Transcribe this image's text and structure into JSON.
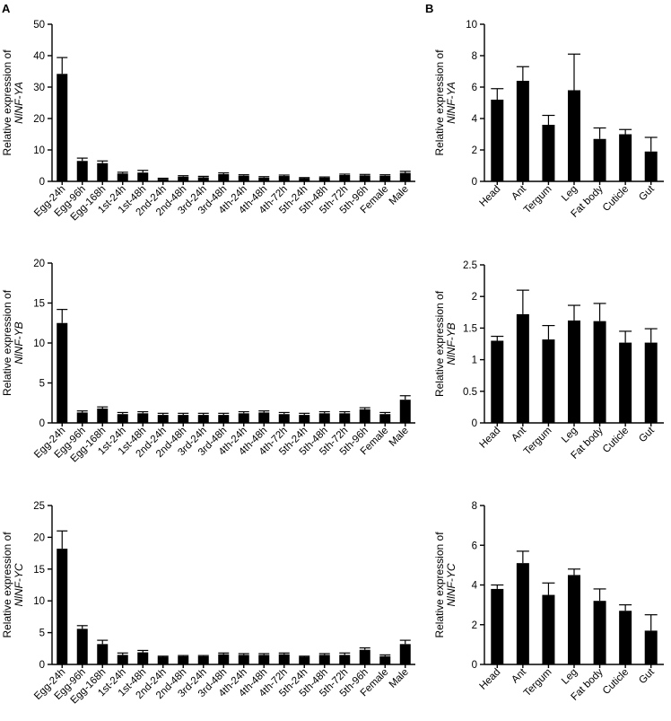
{
  "panels": [
    {
      "letter": "A"
    },
    {
      "letter": "B"
    }
  ],
  "chart_data": [
    {
      "type": "bar",
      "panel": "A",
      "ylabel": "Relative expression of",
      "ylabel_gene": "NlNF-YA",
      "ylim": [
        0,
        50
      ],
      "yticks": [
        0,
        10,
        20,
        30,
        40,
        50
      ],
      "categories": [
        "Egg-24h",
        "Egg-96h",
        "Egg-168h",
        "1st-24h",
        "1st-48h",
        "2nd-24h",
        "2nd-48h",
        "3rd-24h",
        "3rd-48h",
        "4th-24h",
        "4th-48h",
        "4th-72h",
        "5th-24h",
        "5th-48h",
        "5th-72h",
        "5th-96h",
        "Female",
        "Male"
      ],
      "values": [
        34.2,
        6.5,
        5.8,
        2.5,
        2.8,
        0.8,
        1.5,
        1.3,
        2.3,
        1.8,
        1.2,
        1.7,
        1.0,
        1.2,
        2.0,
        1.9,
        1.8,
        2.7
      ],
      "errors": [
        5.2,
        0.9,
        0.7,
        0.4,
        0.7,
        0.2,
        0.3,
        0.3,
        0.4,
        0.3,
        0.3,
        0.3,
        0.2,
        0.2,
        0.3,
        0.3,
        0.3,
        0.5
      ],
      "grid": false
    },
    {
      "type": "bar",
      "panel": "B",
      "ylabel": "Relative expression of",
      "ylabel_gene": "NlNF-YA",
      "ylim": [
        0,
        10
      ],
      "yticks": [
        0,
        2,
        4,
        6,
        8,
        10
      ],
      "categories": [
        "Head",
        "Ant",
        "Tergum",
        "Leg",
        "Fat body",
        "Cuticle",
        "Gut"
      ],
      "values": [
        5.2,
        6.4,
        3.6,
        5.8,
        2.7,
        3.0,
        1.9
      ],
      "errors": [
        0.7,
        0.9,
        0.6,
        2.3,
        0.7,
        0.3,
        0.9
      ],
      "grid": false
    },
    {
      "type": "bar",
      "panel": "A",
      "ylabel": "Relative expression of",
      "ylabel_gene": "NlNF-YB",
      "ylim": [
        0,
        20
      ],
      "yticks": [
        0,
        5,
        10,
        15,
        20
      ],
      "categories": [
        "Egg-24h",
        "Egg-96h",
        "Egg-168h",
        "1st-24h",
        "1st-48h",
        "2nd-24h",
        "2nd-48h",
        "3rd-24h",
        "3rd-48h",
        "4th-24h",
        "4th-48h",
        "4th-72h",
        "5th-24h",
        "5th-48h",
        "5th-72h",
        "5th-96h",
        "Female",
        "Male"
      ],
      "values": [
        12.5,
        1.3,
        1.8,
        1.1,
        1.2,
        1.0,
        1.0,
        1.0,
        1.0,
        1.2,
        1.3,
        1.1,
        1.0,
        1.2,
        1.2,
        1.7,
        1.1,
        2.9
      ],
      "errors": [
        1.7,
        0.2,
        0.2,
        0.2,
        0.2,
        0.2,
        0.2,
        0.2,
        0.2,
        0.2,
        0.2,
        0.2,
        0.2,
        0.2,
        0.2,
        0.2,
        0.2,
        0.5
      ],
      "grid": false
    },
    {
      "type": "bar",
      "panel": "B",
      "ylabel": "Relative expression of",
      "ylabel_gene": "NlNF-YB",
      "ylim": [
        0,
        2.5
      ],
      "yticks": [
        0,
        0.5,
        1,
        1.5,
        2,
        2.5
      ],
      "ytick_labels": [
        "0",
        "0.5",
        "1",
        "1.5",
        "2",
        "2.5"
      ],
      "categories": [
        "Head",
        "Ant",
        "Tergum",
        "Leg",
        "Fat body",
        "Cuticle",
        "Gut"
      ],
      "values": [
        1.3,
        1.72,
        1.32,
        1.62,
        1.61,
        1.27,
        1.27
      ],
      "errors": [
        0.07,
        0.38,
        0.22,
        0.24,
        0.28,
        0.18,
        0.22
      ],
      "grid": false
    },
    {
      "type": "bar",
      "panel": "A",
      "ylabel": "Relative expression of",
      "ylabel_gene": "NlNF-YC",
      "ylim": [
        0,
        25
      ],
      "yticks": [
        0,
        5,
        10,
        15,
        20,
        25
      ],
      "categories": [
        "Egg-24h",
        "Egg-96h",
        "Egg-168h",
        "1st-24h",
        "1st-48h",
        "2nd-24h",
        "2nd-48h",
        "3rd-24h",
        "3rd-48h",
        "4th-24h",
        "4th-48h",
        "4th-72h",
        "5th-24h",
        "5th-48h",
        "5th-72h",
        "5th-96h",
        "Female",
        "Male"
      ],
      "values": [
        18.2,
        5.6,
        3.2,
        1.5,
        1.9,
        1.2,
        1.3,
        1.3,
        1.6,
        1.5,
        1.5,
        1.6,
        1.2,
        1.5,
        1.5,
        2.3,
        1.3,
        3.2
      ],
      "errors": [
        2.8,
        0.5,
        0.6,
        0.3,
        0.3,
        0.1,
        0.1,
        0.1,
        0.2,
        0.2,
        0.2,
        0.2,
        0.1,
        0.2,
        0.3,
        0.3,
        0.2,
        0.6
      ],
      "grid": false
    },
    {
      "type": "bar",
      "panel": "B",
      "ylabel": "Relative expression of",
      "ylabel_gene": "NlNF-YC",
      "ylim": [
        0,
        8
      ],
      "yticks": [
        0,
        2,
        4,
        6,
        8
      ],
      "categories": [
        "Head",
        "Ant",
        "Tergum",
        "Leg",
        "Fat body",
        "Cuticle",
        "Gut"
      ],
      "values": [
        3.8,
        5.1,
        3.5,
        4.5,
        3.2,
        2.7,
        1.7
      ],
      "errors": [
        0.2,
        0.6,
        0.6,
        0.3,
        0.6,
        0.3,
        0.8
      ],
      "grid": false
    }
  ]
}
